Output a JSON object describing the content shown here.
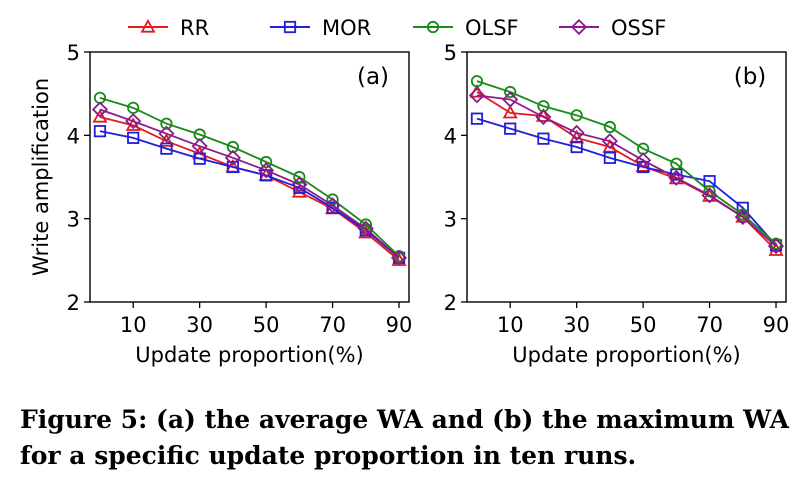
{
  "legend": {
    "placement": "top",
    "entries": [
      {
        "name": "RR",
        "color": "#e41a1c",
        "marker": "triangle"
      },
      {
        "name": "MOR",
        "color": "#1f1fdc",
        "marker": "square"
      },
      {
        "name": "OLSF",
        "color": "#1a8a1a",
        "marker": "circle"
      },
      {
        "name": "OSSF",
        "color": "#8b1a8b",
        "marker": "diamond"
      }
    ]
  },
  "caption": "Figure 5: (a) the average WA and (b) the maximum WA for a specific update proportion in ten runs.",
  "chart_data": [
    {
      "type": "line",
      "panel_label": "(a)",
      "xlabel": "Update proportion(%)",
      "ylabel": "Write amplification",
      "x": [
        0,
        10,
        20,
        30,
        40,
        50,
        60,
        70,
        80,
        90
      ],
      "x_ticks": [
        10,
        30,
        50,
        70,
        90
      ],
      "y_ticks": [
        2,
        3,
        4,
        5
      ],
      "xlim": [
        -3,
        93
      ],
      "ylim": [
        2,
        5
      ],
      "grid": false,
      "series": [
        {
          "name": "RR",
          "values": [
            4.22,
            4.12,
            3.93,
            3.78,
            3.62,
            3.52,
            3.32,
            3.12,
            2.83,
            2.5
          ]
        },
        {
          "name": "MOR",
          "values": [
            4.05,
            3.97,
            3.84,
            3.72,
            3.62,
            3.52,
            3.37,
            3.13,
            2.86,
            2.53
          ]
        },
        {
          "name": "OLSF",
          "values": [
            4.45,
            4.33,
            4.14,
            4.01,
            3.86,
            3.68,
            3.5,
            3.23,
            2.93,
            2.55
          ]
        },
        {
          "name": "OSSF",
          "values": [
            4.31,
            4.17,
            4.02,
            3.87,
            3.73,
            3.58,
            3.41,
            3.16,
            2.88,
            2.53
          ]
        }
      ]
    },
    {
      "type": "line",
      "panel_label": "(b)",
      "xlabel": "Update proportion(%)",
      "ylabel": "",
      "x": [
        0,
        10,
        20,
        30,
        40,
        50,
        60,
        70,
        80,
        90
      ],
      "x_ticks": [
        10,
        30,
        50,
        70,
        90
      ],
      "y_ticks": [
        2,
        3,
        4,
        5
      ],
      "xlim": [
        -3,
        93
      ],
      "ylim": [
        2,
        5
      ],
      "grid": false,
      "series": [
        {
          "name": "RR",
          "values": [
            4.52,
            4.27,
            4.23,
            3.97,
            3.86,
            3.63,
            3.48,
            3.27,
            3.02,
            2.62
          ]
        },
        {
          "name": "MOR",
          "values": [
            4.2,
            4.08,
            3.96,
            3.86,
            3.73,
            3.62,
            3.53,
            3.45,
            3.13,
            2.68
          ]
        },
        {
          "name": "OLSF",
          "values": [
            4.65,
            4.52,
            4.35,
            4.24,
            4.1,
            3.84,
            3.66,
            3.33,
            3.05,
            2.7
          ]
        },
        {
          "name": "OSSF",
          "values": [
            4.48,
            4.43,
            4.22,
            4.03,
            3.93,
            3.7,
            3.49,
            3.28,
            3.02,
            2.67
          ]
        }
      ]
    }
  ]
}
